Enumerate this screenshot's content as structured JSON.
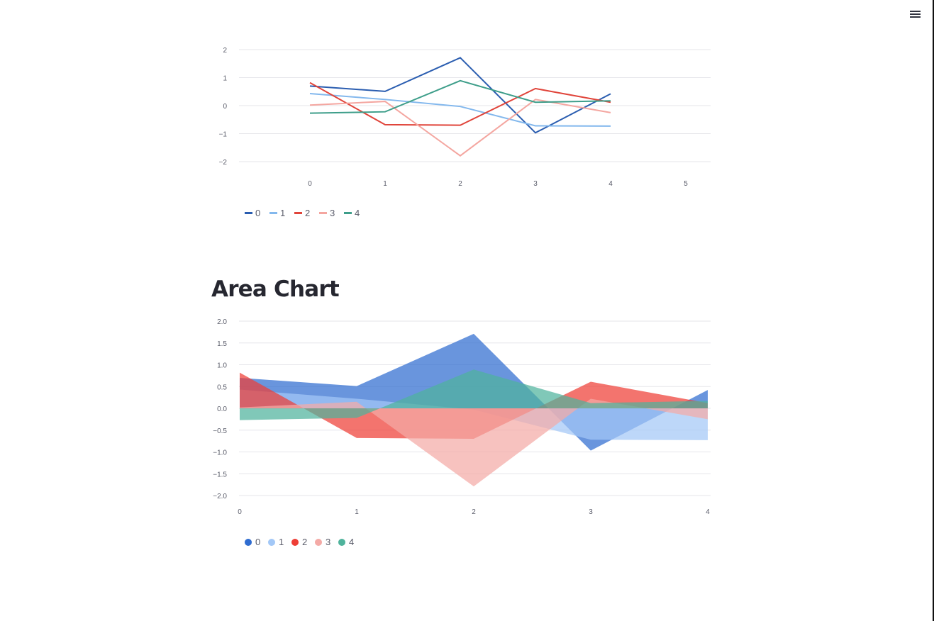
{
  "header": {
    "menu_icon": "hamburger-menu-icon"
  },
  "colors": {
    "line_series": [
      "#2a5db0",
      "#83b8ed",
      "#e0443a",
      "#f4a6a0",
      "#3e9e8a"
    ],
    "area_series": [
      "#2f6cd0",
      "#a3c8f7",
      "#ee3e36",
      "#f4aaa6",
      "#4fb39c"
    ]
  },
  "sections": {
    "area_title": "Area Chart"
  },
  "chart_data": [
    {
      "type": "line",
      "title": "",
      "x": [
        0,
        1,
        2,
        3,
        4
      ],
      "xticks": [
        "0",
        "1",
        "2",
        "3",
        "4",
        "5"
      ],
      "yticks": [
        "2",
        "1",
        "0",
        "−1",
        "−2"
      ],
      "ylim": [
        -2.2,
        2.2
      ],
      "grid": true,
      "legend_position": "bottom-left",
      "series": [
        {
          "name": "0",
          "values": [
            0.7,
            0.51,
            1.71,
            -0.97,
            0.42
          ]
        },
        {
          "name": "1",
          "values": [
            0.43,
            0.22,
            -0.03,
            -0.72,
            -0.73
          ]
        },
        {
          "name": "2",
          "values": [
            0.82,
            -0.68,
            -0.7,
            0.61,
            0.12
          ]
        },
        {
          "name": "3",
          "values": [
            0.02,
            0.15,
            -1.79,
            0.22,
            -0.25
          ]
        },
        {
          "name": "4",
          "values": [
            -0.27,
            -0.22,
            0.89,
            0.12,
            0.17
          ]
        }
      ]
    },
    {
      "type": "area",
      "title": "",
      "x": [
        0,
        1,
        2,
        3,
        4
      ],
      "xticks": [
        "0",
        "1",
        "2",
        "3",
        "4"
      ],
      "yticks": [
        "2.0",
        "1.5",
        "1.0",
        "0.5",
        "0.0",
        "−0.5",
        "−1.0",
        "−1.5",
        "−2.0"
      ],
      "ylim": [
        -2.0,
        2.0
      ],
      "grid": true,
      "legend_position": "bottom-left",
      "series": [
        {
          "name": "0",
          "values": [
            0.7,
            0.51,
            1.71,
            -0.97,
            0.42
          ]
        },
        {
          "name": "1",
          "values": [
            0.43,
            0.22,
            -0.03,
            -0.72,
            -0.73
          ]
        },
        {
          "name": "2",
          "values": [
            0.82,
            -0.68,
            -0.7,
            0.61,
            0.12
          ]
        },
        {
          "name": "3",
          "values": [
            0.02,
            0.15,
            -1.79,
            0.22,
            -0.25
          ]
        },
        {
          "name": "4",
          "values": [
            -0.27,
            -0.22,
            0.89,
            0.12,
            0.17
          ]
        }
      ]
    }
  ]
}
